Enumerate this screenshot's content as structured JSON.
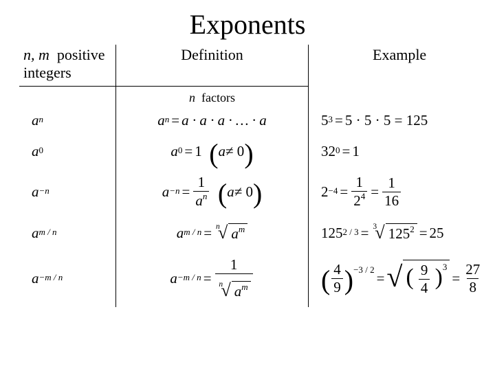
{
  "title": "Exponents",
  "headers": {
    "nm_prefix": "n, m",
    "nm_rest": "positive integers",
    "definition": "Definition",
    "example": "Example"
  },
  "nfactors": {
    "n": "n",
    "rest": "factors"
  },
  "rows": [
    {
      "label_base": "a",
      "label_exp": "n",
      "def_lhs_base": "a",
      "def_lhs_exp": "n",
      "def_rhs_seq": "a · a · a · … · a",
      "ex_lhs_base": "5",
      "ex_lhs_exp": "3",
      "ex_rhs": "5 · 5 · 5 = 125"
    },
    {
      "label_base": "a",
      "label_exp": "0",
      "def_lhs_base": "a",
      "def_lhs_exp": "0",
      "def_rhs_val": "1",
      "def_cond_base": "a",
      "def_cond_rest": " ≠ 0",
      "ex_lhs_base": "32",
      "ex_lhs_exp": "0",
      "ex_rhs_val": "1"
    },
    {
      "label_base": "a",
      "label_exp": "−n",
      "def_lhs_base": "a",
      "def_lhs_exp": "−n",
      "def_frac_num": "1",
      "def_frac_den_base": "a",
      "def_frac_den_exp": "n",
      "def_cond_base": "a",
      "def_cond_rest": " ≠ 0",
      "ex_lhs_base": "2",
      "ex_lhs_exp": "−4",
      "ex_frac1_num": "1",
      "ex_frac1_den_base": "2",
      "ex_frac1_den_exp": "4",
      "ex_frac2_num": "1",
      "ex_frac2_den": "16"
    },
    {
      "label_base": "a",
      "label_exp": "m / n",
      "def_lhs_base": "a",
      "def_lhs_exp": "m / n",
      "def_root_idx": "n",
      "def_root_rad_base": "a",
      "def_root_rad_exp": "m",
      "ex_lhs_base": "125",
      "ex_lhs_exp": "2 / 3",
      "ex_root_idx": "3",
      "ex_root_rad_base": "125",
      "ex_root_rad_exp": "2",
      "ex_result": "25"
    },
    {
      "label_base": "a",
      "label_exp": "−m / n",
      "def_lhs_base": "a",
      "def_lhs_exp": "−m / n",
      "def_frac_num": "1",
      "def_root_idx": "n",
      "def_root_rad_base": "a",
      "def_root_rad_exp": "m",
      "ex_paren_num": "4",
      "ex_paren_den": "9",
      "ex_paren_exp": "−3 / 2",
      "ex_root_paren_num": "9",
      "ex_root_paren_den": "4",
      "ex_root_paren_exp": "3",
      "ex_result_num": "27",
      "ex_result_den": "8"
    }
  ],
  "colors": {
    "text": "#000000",
    "bg": "#ffffff",
    "border": "#000000"
  }
}
